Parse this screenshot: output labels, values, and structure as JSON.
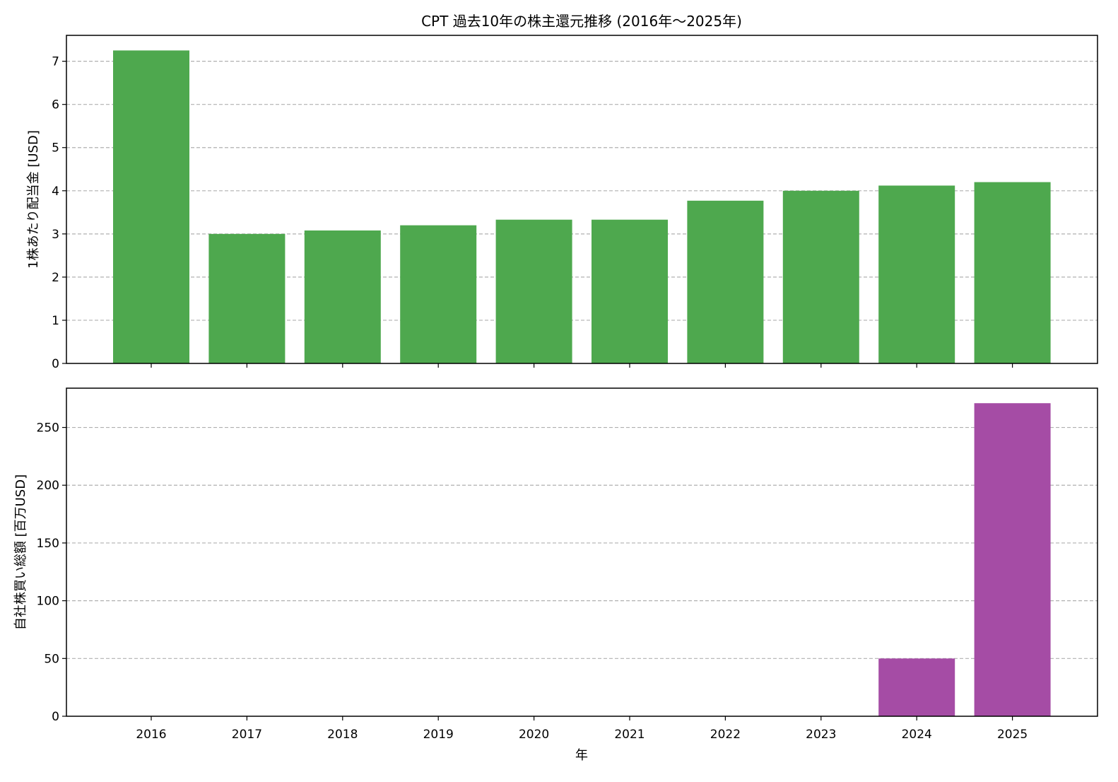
{
  "title": "CPT 過去10年の株主還元推移 (2016年〜2025年)",
  "xlabel": "年",
  "colors": {
    "dividend": "#4ea84e",
    "buyback": "#a54ca5",
    "grid": "#b0b0b0",
    "axis": "#000000"
  },
  "chart_data": [
    {
      "type": "bar",
      "categories": [
        "2016",
        "2017",
        "2018",
        "2019",
        "2020",
        "2021",
        "2022",
        "2023",
        "2024",
        "2025"
      ],
      "values": [
        7.25,
        3.0,
        3.08,
        3.2,
        3.33,
        3.33,
        3.77,
        4.0,
        4.12,
        4.2
      ],
      "title": "CPT 過去10年の株主還元推移 (2016年〜2025年)",
      "xlabel": "",
      "ylabel": "1株あたり配当金 [USD]",
      "ylim": [
        0,
        7.6
      ],
      "yticks": [
        0,
        1,
        2,
        3,
        4,
        5,
        6,
        7
      ],
      "grid": "y-dashed",
      "show_xticklabels": false
    },
    {
      "type": "bar",
      "categories": [
        "2016",
        "2017",
        "2018",
        "2019",
        "2020",
        "2021",
        "2022",
        "2023",
        "2024",
        "2025"
      ],
      "values": [
        0,
        0,
        0,
        0,
        0,
        0,
        0,
        0,
        50,
        271
      ],
      "xlabel": "年",
      "ylabel": "自社株買い総額 [百万USD]",
      "ylim": [
        0,
        284
      ],
      "yticks": [
        0,
        50,
        100,
        150,
        200,
        250
      ],
      "grid": "y-dashed",
      "show_xticklabels": true
    }
  ]
}
